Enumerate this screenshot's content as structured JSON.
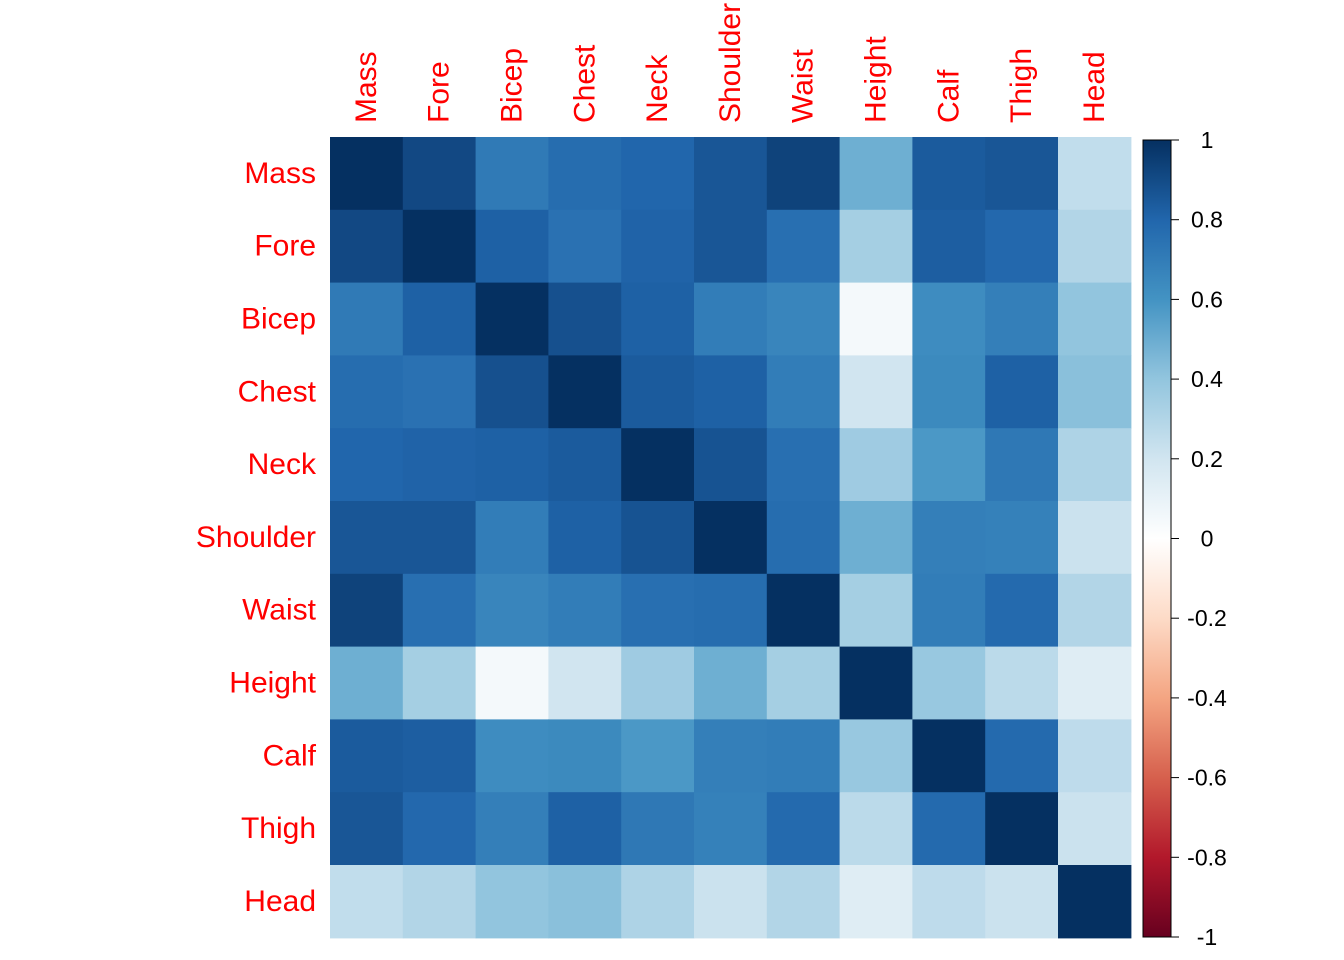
{
  "chart_data": {
    "type": "heatmap",
    "title": "",
    "variables": [
      "Mass",
      "Fore",
      "Bicep",
      "Chest",
      "Neck",
      "Shoulder",
      "Waist",
      "Height",
      "Calf",
      "Thigh",
      "Head"
    ],
    "matrix": [
      [
        1.0,
        0.91,
        0.71,
        0.77,
        0.8,
        0.86,
        0.93,
        0.49,
        0.84,
        0.86,
        0.25
      ],
      [
        0.91,
        1.0,
        0.82,
        0.75,
        0.81,
        0.86,
        0.76,
        0.34,
        0.83,
        0.79,
        0.3
      ],
      [
        0.71,
        0.82,
        1.0,
        0.88,
        0.82,
        0.7,
        0.66,
        0.05,
        0.63,
        0.69,
        0.4
      ],
      [
        0.77,
        0.75,
        0.88,
        1.0,
        0.84,
        0.82,
        0.7,
        0.2,
        0.64,
        0.82,
        0.42
      ],
      [
        0.8,
        0.81,
        0.82,
        0.84,
        1.0,
        0.87,
        0.76,
        0.36,
        0.58,
        0.72,
        0.31
      ],
      [
        0.86,
        0.86,
        0.7,
        0.82,
        0.87,
        1.0,
        0.77,
        0.49,
        0.69,
        0.68,
        0.22
      ],
      [
        0.93,
        0.76,
        0.66,
        0.7,
        0.76,
        0.77,
        1.0,
        0.34,
        0.7,
        0.78,
        0.3
      ],
      [
        0.49,
        0.34,
        0.05,
        0.2,
        0.36,
        0.49,
        0.34,
        1.0,
        0.38,
        0.27,
        0.14
      ],
      [
        0.84,
        0.83,
        0.63,
        0.64,
        0.58,
        0.69,
        0.7,
        0.38,
        1.0,
        0.78,
        0.26
      ],
      [
        0.86,
        0.79,
        0.69,
        0.82,
        0.72,
        0.68,
        0.78,
        0.27,
        0.78,
        1.0,
        0.22
      ],
      [
        0.25,
        0.3,
        0.4,
        0.42,
        0.31,
        0.22,
        0.3,
        0.14,
        0.26,
        0.22,
        1.0
      ]
    ],
    "colorbar": {
      "range": [
        -1,
        1
      ],
      "ticks": [
        1,
        0.8,
        0.6,
        0.4,
        0.2,
        0,
        -0.2,
        -0.4,
        -0.6,
        -0.8,
        -1
      ],
      "tick_labels": [
        "1",
        "0.8",
        "0.6",
        "0.4",
        "0.2",
        "0",
        "-0.2",
        "-0.4",
        "-0.6",
        "-0.8",
        "-1"
      ],
      "palette": [
        "#67001F",
        "#B2182B",
        "#D6604D",
        "#F4A582",
        "#FDDBC7",
        "#FFFFFF",
        "#D1E5F0",
        "#92C5DE",
        "#4393C3",
        "#2166AC",
        "#053061"
      ]
    },
    "label_color": "#FF0000",
    "legend": "right"
  }
}
